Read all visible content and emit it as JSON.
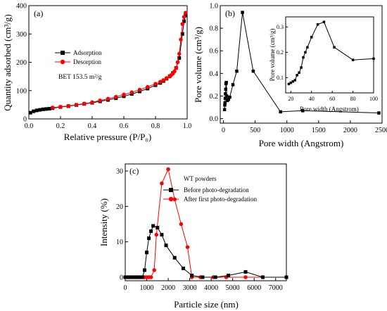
{
  "chart_data": [
    {
      "id": "a",
      "type": "line",
      "panel_label": "(a)",
      "xlabel": "Relative pressure (P/P₀)",
      "ylabel": "Quantity adsorbed (cm³/g)",
      "xlim": [
        0,
        1.0
      ],
      "ylim": [
        0,
        400
      ],
      "xticks": [
        0.0,
        0.2,
        0.4,
        0.6,
        0.8,
        1.0
      ],
      "xtick_labels": [
        "0.0",
        "0.2",
        "0.4",
        "0.6",
        "0.8",
        "1.0"
      ],
      "yticks": [
        0,
        100,
        200,
        300,
        400
      ],
      "ytick_labels": [
        "0",
        "100",
        "200",
        "300",
        "400"
      ],
      "annotation": "BET 153.5 m²/g",
      "legend_placement": "upper-left",
      "series": [
        {
          "name": "Adsorption",
          "color": "#000000",
          "marker": "square",
          "x": [
            0.01,
            0.03,
            0.05,
            0.07,
            0.09,
            0.11,
            0.13,
            0.15,
            0.2,
            0.25,
            0.3,
            0.35,
            0.4,
            0.45,
            0.5,
            0.55,
            0.6,
            0.65,
            0.7,
            0.75,
            0.8,
            0.83,
            0.85,
            0.87,
            0.89,
            0.91,
            0.93,
            0.95,
            0.97,
            0.98,
            0.99
          ],
          "y": [
            22,
            27,
            30,
            32,
            34,
            35,
            36,
            38,
            42,
            45,
            49,
            53,
            57,
            62,
            67,
            73,
            80,
            88,
            97,
            107,
            119,
            127,
            134,
            142,
            151,
            162,
            180,
            215,
            300,
            345,
            365
          ]
        },
        {
          "name": "Desorption",
          "color": "#ff0000",
          "marker": "circle",
          "x": [
            0.99,
            0.98,
            0.97,
            0.96,
            0.95,
            0.94,
            0.93,
            0.92,
            0.91,
            0.9,
            0.89,
            0.87,
            0.85,
            0.83,
            0.8,
            0.75,
            0.7,
            0.65,
            0.6,
            0.55,
            0.5,
            0.45,
            0.4,
            0.35,
            0.3,
            0.25,
            0.2,
            0.15
          ],
          "y": [
            375,
            360,
            335,
            280,
            230,
            200,
            180,
            168,
            160,
            155,
            150,
            144,
            137,
            131,
            124,
            113,
            103,
            94,
            86,
            78,
            71,
            65,
            59,
            54,
            50,
            46,
            43,
            40
          ]
        }
      ]
    },
    {
      "id": "b",
      "type": "line",
      "panel_label": "(b)",
      "xlabel": "Pore width (Angstrom)",
      "ylabel": "Pore volume (cm³/g)",
      "xlim": [
        -50,
        2500
      ],
      "ylim": [
        -0.04,
        1.0
      ],
      "xticks": [
        0,
        500,
        1000,
        1500,
        2000,
        2500
      ],
      "xtick_labels": [
        "0",
        "500",
        "1000",
        "1500",
        "2000",
        "2500"
      ],
      "yticks": [
        0.0,
        0.2,
        0.4,
        0.6,
        0.8,
        1.0
      ],
      "ytick_labels": [
        "0.0",
        "0.2",
        "0.4",
        "0.6",
        "0.8",
        "1.0"
      ],
      "series": [
        {
          "color": "#000000",
          "marker": "square",
          "x": [
            18,
            22,
            25,
            28,
            32,
            36,
            40,
            46,
            52,
            62,
            80,
            100,
            150,
            210,
            300,
            470,
            900,
            1250,
            2450
          ],
          "y": [
            0.08,
            0.12,
            0.14,
            0.18,
            0.22,
            0.26,
            0.31,
            0.32,
            0.2,
            0.16,
            0.17,
            0.19,
            0.3,
            0.42,
            0.94,
            0.42,
            0.06,
            0.07,
            0.05
          ]
        }
      ],
      "inset": {
        "xlabel": "Pore width (Angstrom)",
        "ylabel": "Pore volume (cm³/g)",
        "xlim": [
          15,
          100
        ],
        "ylim": [
          0.04,
          0.34
        ],
        "xticks": [
          20,
          40,
          60,
          80,
          100
        ],
        "xtick_labels": [
          "20",
          "40",
          "60",
          "80",
          "100"
        ],
        "yticks": [
          0.1,
          0.2,
          0.3
        ],
        "ytick_labels": [
          "0.1",
          "0.2",
          "0.3"
        ],
        "x": [
          18,
          20,
          22,
          24,
          26,
          28,
          30,
          32,
          34,
          36,
          40,
          46,
          52,
          62,
          80,
          100
        ],
        "y": [
          0.075,
          0.08,
          0.085,
          0.09,
          0.11,
          0.12,
          0.14,
          0.18,
          0.2,
          0.22,
          0.26,
          0.31,
          0.32,
          0.22,
          0.17,
          0.175
        ]
      }
    },
    {
      "id": "c",
      "type": "line",
      "panel_label": "(c)",
      "xlabel": "Particle size (nm)",
      "ylabel": "Intensity (%)",
      "xlim": [
        0,
        7500
      ],
      "ylim": [
        -1,
        32
      ],
      "xticks": [
        0,
        1000,
        2000,
        3000,
        4000,
        5000,
        6000,
        7000
      ],
      "xtick_labels": [
        "0",
        "1000",
        "2000",
        "3000",
        "4000",
        "5000",
        "6000",
        "7000"
      ],
      "yticks": [
        0,
        10,
        20,
        30
      ],
      "ytick_labels": [
        "0",
        "10",
        "20",
        "30"
      ],
      "legend_title": "WT powders",
      "legend_placement": "upper-right",
      "series": [
        {
          "name": "Before photo-degradation",
          "color": "#000000",
          "marker": "square",
          "x": [
            0,
            100,
            200,
            300,
            400,
            500,
            600,
            700,
            800,
            900,
            1000,
            1100,
            1200,
            1300,
            1500,
            1700,
            1900,
            2300,
            2700,
            3100,
            3600,
            4200,
            4800,
            5600,
            6400,
            7500
          ],
          "y": [
            0,
            0,
            0,
            0,
            0,
            0,
            0,
            0,
            0,
            2,
            7,
            11,
            13,
            14.5,
            14,
            12,
            9,
            5.5,
            2.5,
            0.5,
            0,
            0,
            0.5,
            1.5,
            0,
            0
          ]
        },
        {
          "name": "After first photo-degradation",
          "color": "#ff0000",
          "marker": "circle",
          "x": [
            0,
            100,
            200,
            300,
            400,
            500,
            600,
            700,
            800,
            900,
            1000,
            1100,
            1200,
            1350,
            1450,
            1700,
            2000,
            2300,
            2600,
            2900,
            3100,
            3500,
            4100,
            4700,
            5600,
            6400,
            7500
          ],
          "y": [
            0,
            0,
            0,
            0,
            0,
            0,
            0,
            0,
            0,
            0,
            0,
            0,
            0,
            2,
            12,
            26.5,
            30.5,
            22,
            15,
            8.5,
            0,
            0,
            0,
            0,
            0,
            0,
            0
          ]
        }
      ]
    }
  ]
}
